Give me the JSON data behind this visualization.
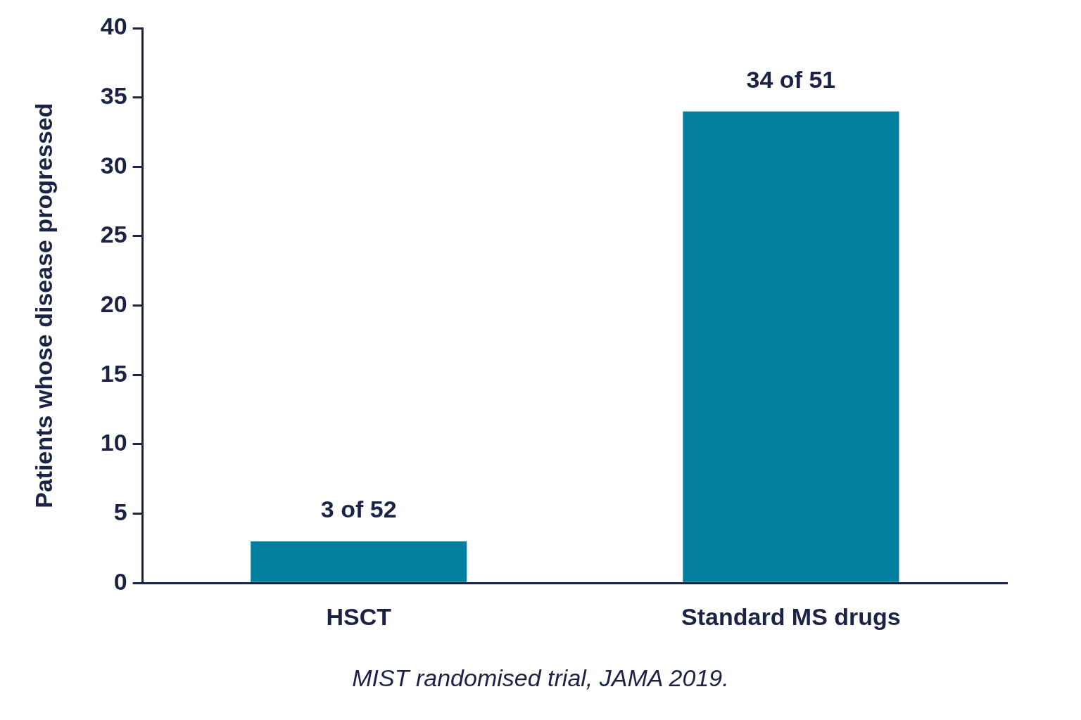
{
  "chart_data": {
    "type": "bar",
    "ylabel": "Patients whose disease progressed",
    "categories": [
      "HSCT",
      "Standard MS drugs"
    ],
    "values": [
      3,
      34
    ],
    "color": "#047e9e",
    "value_labels": [
      "3 of 52",
      "34 of 51"
    ],
    "ylim": [
      0,
      40
    ],
    "yticks": [
      0,
      5,
      10,
      15,
      20,
      25,
      30,
      35,
      40
    ],
    "grid": false,
    "annotations": [
      "MIST randomised trial, JAMA 2019."
    ]
  }
}
